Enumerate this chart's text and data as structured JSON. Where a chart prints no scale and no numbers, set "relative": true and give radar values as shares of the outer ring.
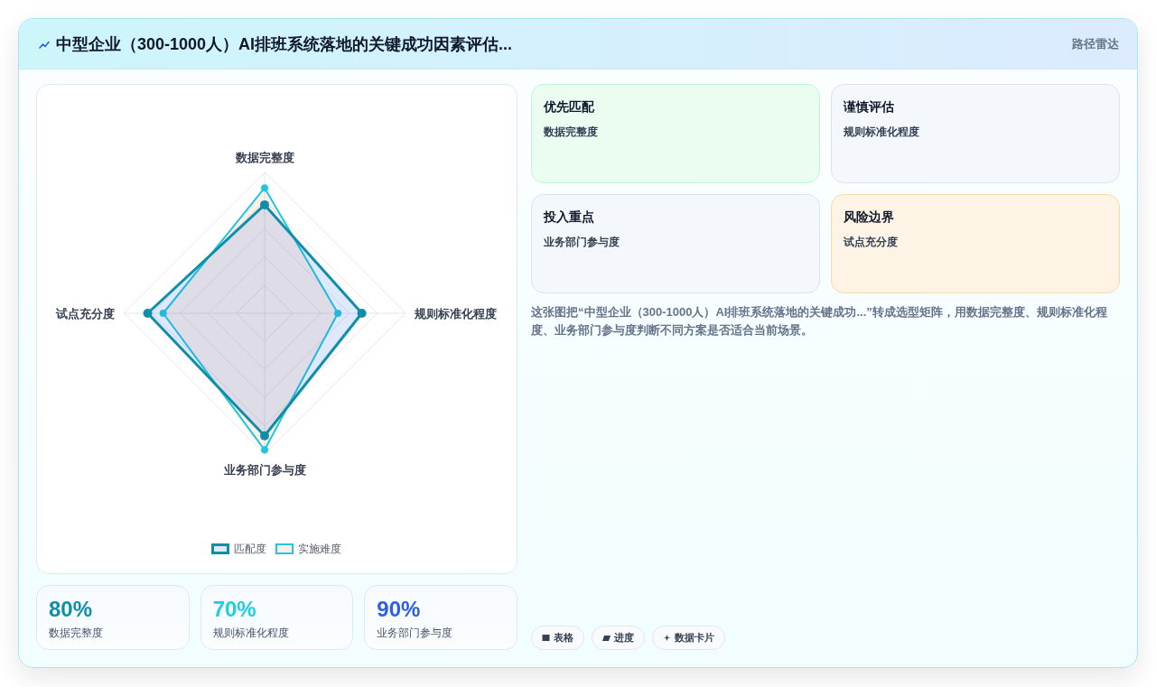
{
  "chart_data": [
    {
      "type": "radar",
      "title": "中型企业（300-1000人）AI排班系统落地的关键成功因素评估...",
      "annotations": [
        "路径雷达"
      ],
      "categories": [
        "数据完整度",
        "规则标准化程度",
        "业务部门参与度",
        "试点充分度"
      ],
      "relative": true,
      "series": [
        {
          "name": "匹配度",
          "color": "#0e8fa7",
          "values": [
            0.77,
            0.69,
            0.87,
            0.83
          ]
        },
        {
          "name": "实施难度",
          "color": "#22c7df",
          "values": [
            0.89,
            0.52,
            0.97,
            0.72
          ]
        }
      ],
      "grid": true,
      "legend": "bottom",
      "marker": "circle"
    },
    {
      "type": "other",
      "categories": [
        "数据完整度",
        "规则标准化程度",
        "业务部门参与度"
      ],
      "annotations": [
        "80%",
        "70%",
        "90%"
      ]
    },
    {
      "type": "other",
      "categories": [
        "优先匹配",
        "谨慎评估",
        "投入重点",
        "风险边界"
      ],
      "colors": [
        "#bbf7d0",
        "#dbe3f0",
        "#dbe3f0",
        "#fcd9a8"
      ],
      "annotations": [
        "数据完整度",
        "规则标准化程度",
        "业务部门参与度",
        "试点充分度",
        "这张图把“中型企业（300-1000人）AI排班系统落地的关键成功...”转成选型矩阵，用数据完整度、规则标准化程度、业务部门参与度判断不同方案是否适合当前场景。",
        "表格",
        "进度",
        "数据卡片"
      ]
    }
  ]
}
